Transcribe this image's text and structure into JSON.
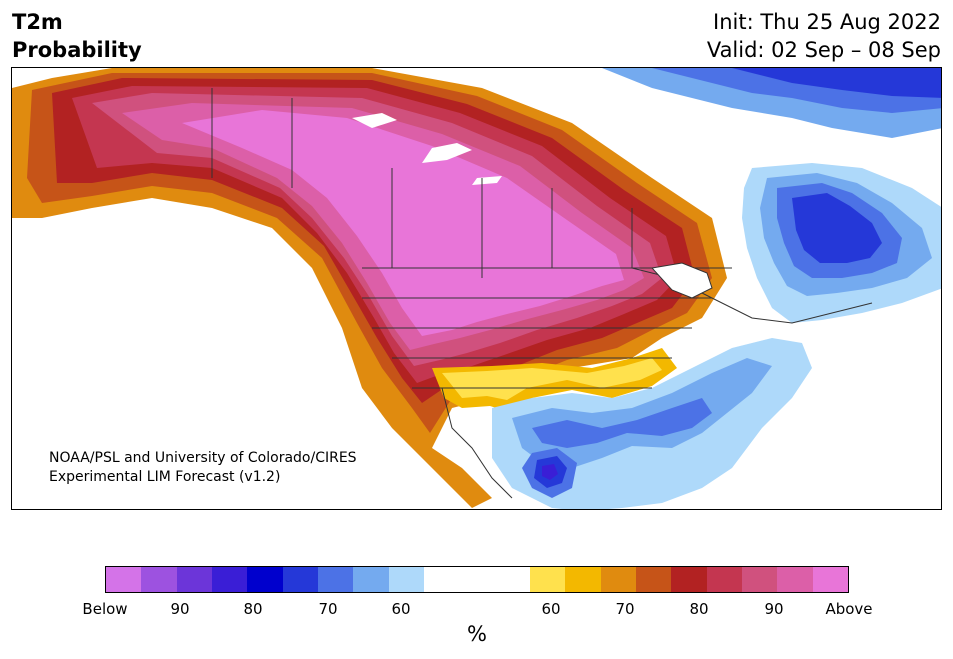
{
  "header": {
    "title_line1": "T2m",
    "title_line2": "Probability",
    "init": "Init: Thu 25 Aug 2022",
    "valid": "Valid: 02 Sep – 08 Sep"
  },
  "map": {
    "credit_line1": "NOAA/PSL and University of Colorado/CIRES",
    "credit_line2": "Experimental LIM Forecast (v1.2)"
  },
  "colorbar": {
    "colors": [
      "#d473e8",
      "#9d52e0",
      "#6c35d9",
      "#3a1ed6",
      "#0000cd",
      "#2538d8",
      "#4c72e6",
      "#74aaef",
      "#aed9fa",
      "#ffffff",
      "#ffe14d",
      "#f3b800",
      "#e08b0f",
      "#c65418",
      "#b22222",
      "#c43650",
      "#d0517e",
      "#dc5fa8",
      "#e875d8"
    ],
    "tick_labels": [
      "Below",
      "90",
      "80",
      "70",
      "60",
      "60",
      "70",
      "80",
      "90",
      "Above"
    ],
    "unit": "%"
  }
}
